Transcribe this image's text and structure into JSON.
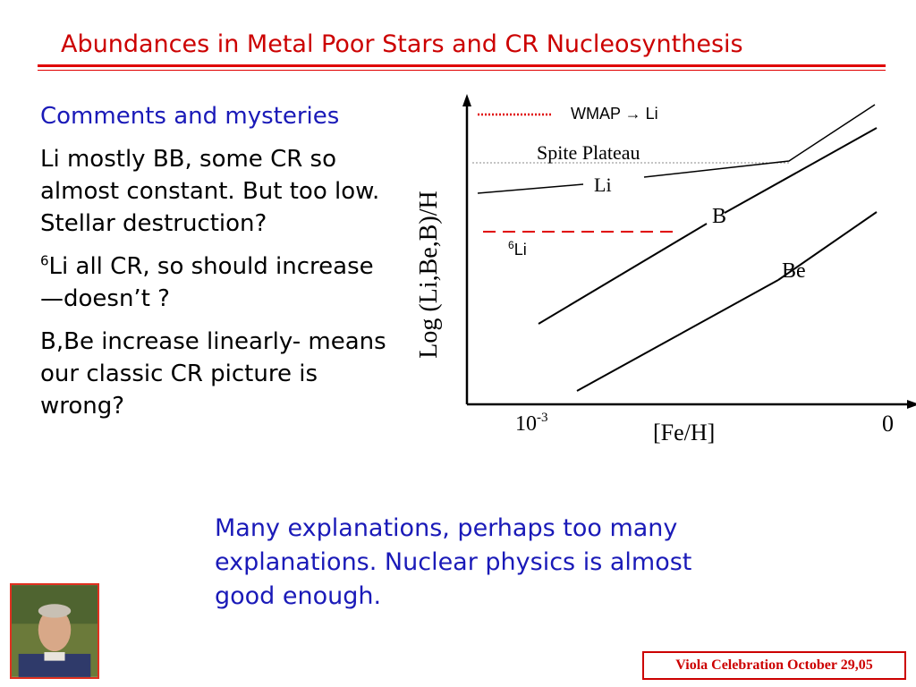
{
  "slide": {
    "title": "Abundances in Metal Poor Stars and CR Nucleosynthesis"
  },
  "left_text": {
    "heading": "Comments and mysteries",
    "para1": "Li mostly BB, some CR so almost constant.  But too low.  Stellar destruction?",
    "para2_sup": "6",
    "para2_text": "Li all CR, so should increase—doesn’t ?",
    "para3": "B,Be increase linearly- means our classic CR picture is wrong?"
  },
  "bottom_text": "Many explanations, perhaps too many explanations.  Nuclear physics is almost good enough.",
  "footer": "Viola Celebration October 29,05",
  "chart": {
    "ylabel": "Log (Li,Be,B)/H",
    "xlabel": "[Fe/H]",
    "xtick_left_base": "10",
    "xtick_left_exp": "-3",
    "xtick_right": "0",
    "legend_wmap": "WMAP → Li",
    "label_spite": "Spite Plateau",
    "label_li": "Li",
    "label_b": "B",
    "label_be": "Be",
    "label_li6_sup": "6",
    "label_li6": "Li",
    "colors": {
      "wmap": "#e00000",
      "li6": "#e00000",
      "lines": "#000000"
    }
  },
  "colors": {
    "title": "#cc0000",
    "blue_text": "#1a1ab8",
    "rule": "#e00000"
  }
}
